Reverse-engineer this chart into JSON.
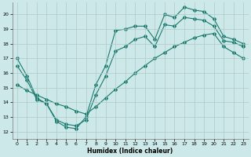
{
  "xlabel": "Humidex (Indice chaleur)",
  "xlim": [
    -0.5,
    23.5
  ],
  "ylim": [
    11.5,
    20.8
  ],
  "yticks": [
    12,
    13,
    14,
    15,
    16,
    17,
    18,
    19,
    20
  ],
  "xticks": [
    0,
    1,
    2,
    3,
    4,
    5,
    6,
    7,
    8,
    9,
    10,
    11,
    12,
    13,
    14,
    15,
    16,
    17,
    18,
    19,
    20,
    21,
    22,
    23
  ],
  "bg_color": "#cde8e8",
  "grid_color": "#b0c8c8",
  "line_color": "#1a7a6e",
  "line1_y": [
    17.0,
    15.8,
    14.3,
    13.9,
    12.7,
    12.3,
    12.2,
    13.0,
    15.2,
    16.5,
    18.9,
    19.0,
    19.2,
    19.2,
    18.3,
    20.0,
    19.8,
    20.5,
    20.3,
    20.2,
    19.7,
    18.5,
    18.3,
    18.0
  ],
  "line2_y": [
    15.2,
    14.8,
    14.5,
    14.2,
    13.9,
    13.7,
    13.4,
    13.2,
    13.7,
    14.3,
    14.9,
    15.4,
    16.0,
    16.5,
    17.0,
    17.4,
    17.8,
    18.1,
    18.4,
    18.6,
    18.7,
    17.8,
    17.4,
    17.0
  ],
  "line3_y": [
    16.5,
    15.5,
    14.2,
    13.9,
    12.8,
    12.5,
    12.4,
    12.8,
    14.5,
    15.8,
    17.5,
    17.8,
    18.3,
    18.5,
    17.8,
    19.3,
    19.2,
    19.8,
    19.7,
    19.6,
    19.2,
    18.2,
    18.1,
    17.8
  ]
}
